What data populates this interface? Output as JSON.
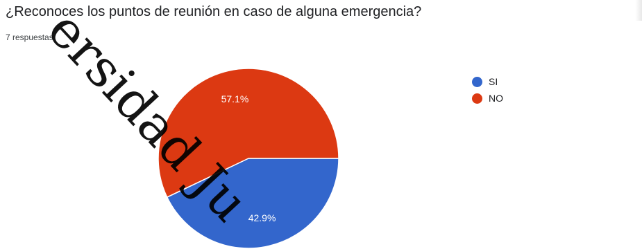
{
  "title": "¿Reconoces los puntos de reunión en caso de alguna emergencia?",
  "subtitle": "7 respuestas",
  "watermark": "ersidad Ju",
  "chart_data": {
    "type": "pie",
    "title": "¿Reconoces los puntos de reunión en caso de alguna emergencia?",
    "slices": [
      {
        "label": "SI",
        "value": 42.9,
        "display": "42.9%",
        "color": "#3366cc"
      },
      {
        "label": "NO",
        "value": 57.1,
        "display": "57.1%",
        "color": "#dc3912"
      }
    ],
    "legend_position": "right",
    "responses": 7
  }
}
